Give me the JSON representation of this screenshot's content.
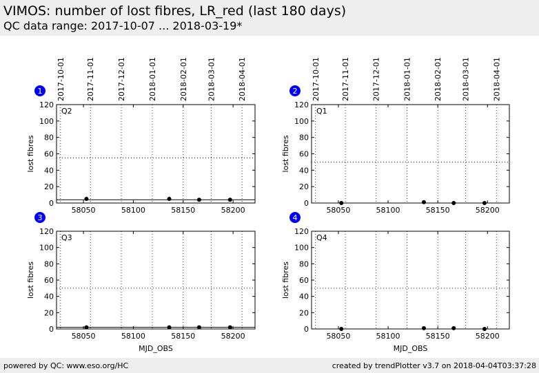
{
  "header": {
    "title": "VIMOS: number of lost fibres, LR_red (last 180 days)",
    "subtitle": "QC data range: 2017-10-07 ... 2018-03-19*"
  },
  "footer": {
    "left": "powered by QC: www.eso.org/HC",
    "right": "created by trendPlotter v3.7 on 2018-04-04T03:37:28"
  },
  "colors": {
    "header_bg": "#eeeeee",
    "badge": "#0000ff",
    "points": "#000000"
  },
  "chart_data": [
    {
      "type": "scatter",
      "badge": "1",
      "quadrant": "Q2",
      "xlabel": "",
      "ylabel": "lost fibres",
      "xlim": [
        58023,
        58222
      ],
      "ylim": [
        0,
        120
      ],
      "xticks": [
        58050,
        58100,
        58150,
        58200
      ],
      "yticks": [
        0,
        20,
        40,
        60,
        80,
        100,
        120
      ],
      "date_ticks": [
        {
          "mjd": 58027,
          "label": "2017-10-01"
        },
        {
          "mjd": 58057,
          "label": "2017-11-01"
        },
        {
          "mjd": 58088,
          "label": "2017-12-01"
        },
        {
          "mjd": 58119,
          "label": "2018-01-01"
        },
        {
          "mjd": 58150,
          "label": "2018-02-01"
        },
        {
          "mjd": 58178,
          "label": "2018-03-01"
        },
        {
          "mjd": 58209,
          "label": "2018-04-01"
        }
      ],
      "threshold": 55,
      "baseline": 4,
      "x": [
        58053,
        58136,
        58166,
        58197
      ],
      "y": [
        5,
        5,
        4,
        4
      ]
    },
    {
      "type": "scatter",
      "badge": "2",
      "quadrant": "Q1",
      "xlabel": "",
      "ylabel": "lost fibres",
      "xlim": [
        58023,
        58222
      ],
      "ylim": [
        0,
        120
      ],
      "xticks": [
        58050,
        58100,
        58150,
        58200
      ],
      "yticks": [
        0,
        20,
        40,
        60,
        80,
        100,
        120
      ],
      "date_ticks": [
        {
          "mjd": 58027,
          "label": "2017-10-01"
        },
        {
          "mjd": 58057,
          "label": "2017-11-01"
        },
        {
          "mjd": 58088,
          "label": "2017-12-01"
        },
        {
          "mjd": 58119,
          "label": "2018-01-01"
        },
        {
          "mjd": 58150,
          "label": "2018-02-01"
        },
        {
          "mjd": 58178,
          "label": "2018-03-01"
        },
        {
          "mjd": 58209,
          "label": "2018-04-01"
        }
      ],
      "threshold": 50,
      "baseline": 0,
      "x": [
        58053,
        58136,
        58166,
        58197
      ],
      "y": [
        0,
        1,
        0,
        0
      ]
    },
    {
      "type": "scatter",
      "badge": "3",
      "quadrant": "Q3",
      "xlabel": "MJD_OBS",
      "ylabel": "lost fibres",
      "xlim": [
        58023,
        58222
      ],
      "ylim": [
        0,
        120
      ],
      "xticks": [
        58050,
        58100,
        58150,
        58200
      ],
      "yticks": [
        0,
        20,
        40,
        60,
        80,
        100,
        120
      ],
      "date_ticks": [],
      "threshold": 50,
      "baseline": 2,
      "x": [
        58053,
        58136,
        58166,
        58197
      ],
      "y": [
        2,
        2,
        2,
        2
      ]
    },
    {
      "type": "scatter",
      "badge": "4",
      "quadrant": "Q4",
      "xlabel": "MJD_OBS",
      "ylabel": "lost fibres",
      "xlim": [
        58023,
        58222
      ],
      "ylim": [
        0,
        120
      ],
      "xticks": [
        58050,
        58100,
        58150,
        58200
      ],
      "yticks": [
        0,
        20,
        40,
        60,
        80,
        100,
        120
      ],
      "date_ticks": [],
      "threshold": 50,
      "baseline": 0,
      "x": [
        58053,
        58136,
        58166,
        58197
      ],
      "y": [
        0,
        1,
        1,
        0
      ]
    }
  ]
}
